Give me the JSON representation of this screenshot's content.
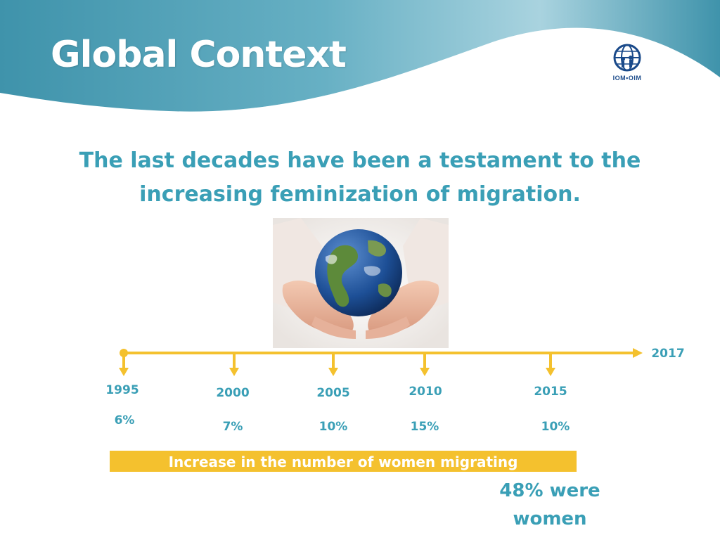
{
  "slide": {
    "title": "Global Context",
    "subtitle_lines": [
      "The last decades have been a testament to the",
      "increasing  feminization of migration."
    ]
  },
  "logo": {
    "text": "IOM•OIM",
    "icon": "iom-logo-icon"
  },
  "image": {
    "icon": "globe-in-hands-image"
  },
  "timeline": {
    "end_label": "2017",
    "points": [
      {
        "year": "1995",
        "value": "6%"
      },
      {
        "year": "2000",
        "value": "7%"
      },
      {
        "year": "2005",
        "value": "10%"
      },
      {
        "year": "2010",
        "value": "15%"
      },
      {
        "year": "2015",
        "value": "10%"
      }
    ]
  },
  "banner": {
    "text": "Increase in the number of  women migrating"
  },
  "note": {
    "lines": [
      "48% were",
      "women"
    ]
  },
  "colors": {
    "header_teal": "#4a9fb5",
    "accent_teal": "#3a9fb6",
    "timeline_yellow": "#f4c12e"
  }
}
